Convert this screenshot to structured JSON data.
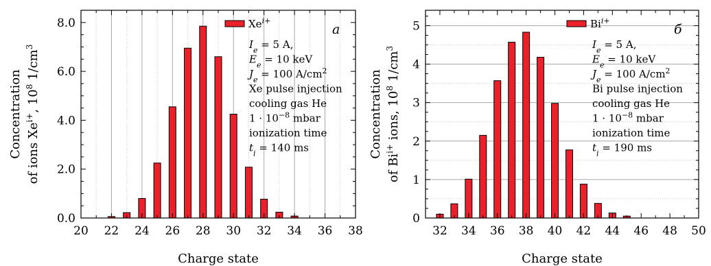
{
  "chart_data": [
    {
      "type": "bar",
      "panel_letter": "a",
      "xlabel": "Charge state",
      "ylabel_line1": "Concentration",
      "ylabel_line2": "of ions Xe",
      "ylabel_sup": "i+",
      "ylabel_unit": ", 10",
      "ylabel_unit_sup": "8",
      "ylabel_unit_tail": " 1/cm",
      "ylabel_unit_tail_sup": "3",
      "xlim": [
        20,
        38
      ],
      "ylim": [
        0,
        8.5
      ],
      "xticks": [
        "20",
        "22",
        "24",
        "26",
        "28",
        "30",
        "32",
        "34",
        "36",
        "38"
      ],
      "yticks": [
        "0.0",
        "2.0",
        "4.0",
        "6.0",
        "8.0"
      ],
      "xtick_values": [
        20,
        22,
        24,
        26,
        28,
        30,
        32,
        34,
        36,
        38
      ],
      "ytick_values": [
        0,
        2,
        4,
        6,
        8
      ],
      "grid": "vertical",
      "legend": {
        "label": "Xe",
        "sup": "i+",
        "position": "top-right"
      },
      "x": [
        22,
        23,
        24,
        25,
        26,
        27,
        28,
        29,
        30,
        31,
        32,
        33,
        34
      ],
      "values": [
        0.06,
        0.22,
        0.8,
        2.25,
        4.55,
        6.95,
        7.85,
        6.6,
        4.25,
        2.08,
        0.77,
        0.24,
        0.08
      ],
      "bar_color": "#e8212b",
      "annotation": [
        {
          "main": "I",
          "sub": "e",
          "rest": " = 5 A,"
        },
        {
          "main": "E",
          "sub": "e",
          "rest": " = 10 keV"
        },
        {
          "main": "J",
          "sub": "e",
          "rest": " = 100 A/cm",
          "sup": "2"
        },
        {
          "text": "Xe pulse injection"
        },
        {
          "text": "cooling gas He"
        },
        {
          "text": "1 · 10",
          "sup": "−8",
          "rest": " mbar"
        },
        {
          "text": "ionization time"
        },
        {
          "main": "t",
          "sub": "i",
          "rest": " = 140 ms"
        }
      ]
    },
    {
      "type": "bar",
      "panel_letter": "б",
      "xlabel": "Charge state",
      "ylabel_line1": "Concentration",
      "ylabel_line2": "of Bi",
      "ylabel_sup": "i+",
      "ylabel_unit": " ions, 10",
      "ylabel_unit_sup": "8",
      "ylabel_unit_tail": " 1/cm",
      "ylabel_unit_tail_sup": "3",
      "xlim": [
        31,
        50
      ],
      "ylim": [
        0,
        5.4
      ],
      "xticks": [
        "32",
        "34",
        "36",
        "38",
        "40",
        "42",
        "44",
        "46",
        "48",
        "50"
      ],
      "yticks": [
        "0",
        "1",
        "2",
        "3",
        "4",
        "5"
      ],
      "xtick_values": [
        32,
        34,
        36,
        38,
        40,
        42,
        44,
        46,
        48,
        50
      ],
      "ytick_values": [
        0,
        1,
        2,
        3,
        4,
        5
      ],
      "grid": "horizontal",
      "legend": {
        "label": "Bi",
        "sup": "i+",
        "position": "top-right"
      },
      "x": [
        32,
        33,
        34,
        35,
        36,
        37,
        38,
        39,
        40,
        41,
        42,
        43,
        44,
        45
      ],
      "values": [
        0.1,
        0.37,
        1.01,
        2.15,
        3.57,
        4.57,
        4.83,
        4.18,
        2.98,
        1.77,
        0.88,
        0.38,
        0.13,
        0.05
      ],
      "bar_color": "#e8212b",
      "annotation": [
        {
          "main": "I",
          "sub": "e",
          "rest": " = 5 A,"
        },
        {
          "main": "E",
          "sub": "e",
          "rest": " = 10 keV"
        },
        {
          "main": "J",
          "sub": "e",
          "rest": " = 100 A/cm",
          "sup": "2"
        },
        {
          "text": "Bi pulse injection"
        },
        {
          "text": "cooling gas He"
        },
        {
          "text": "1 · 10",
          "sup": "−8",
          "rest": " mbar"
        },
        {
          "text": "ionization time"
        },
        {
          "main": "t",
          "sub": "i",
          "rest": " = 190 ms"
        }
      ]
    }
  ]
}
